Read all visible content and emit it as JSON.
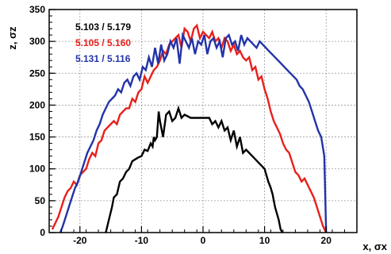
{
  "chart_data": {
    "type": "line",
    "title": "",
    "xlabel": "x, σx",
    "ylabel": "z, σz",
    "xlim": [
      -25,
      25
    ],
    "ylim": [
      0,
      350
    ],
    "xticks": [
      -20,
      -10,
      0,
      10,
      20
    ],
    "yticks": [
      0,
      50,
      100,
      150,
      200,
      250,
      300,
      350
    ],
    "xtick_labels": [
      "-20",
      "-10",
      "0",
      "10",
      "20"
    ],
    "ytick_labels": [
      "0",
      "50",
      "100",
      "150",
      "200",
      "250",
      "300",
      "350"
    ],
    "grid": true,
    "legend_position": "top-left",
    "series": [
      {
        "name": "5.103 / 5.179",
        "color": "#000000",
        "x": [
          -15.8,
          -15.3,
          -14.8,
          -14.5,
          -14.0,
          -13.5,
          -13.0,
          -12.5,
          -12.0,
          -11.5,
          -11.0,
          -10.5,
          -10.0,
          -9.5,
          -9.0,
          -8.5,
          -8.2,
          -8.0,
          -7.8,
          -7.5,
          -7.2,
          -7.0,
          -6.5,
          -6.0,
          -5.5,
          -5.0,
          -4.5,
          -4.0,
          -3.5,
          -3.0,
          -2.0,
          -1.0,
          0.0,
          1.0,
          1.5,
          2.0,
          2.5,
          3.0,
          3.5,
          4.0,
          4.5,
          5.0,
          5.5,
          6.0,
          6.5,
          7.0,
          7.5,
          8.0,
          8.5,
          9.0,
          9.5,
          10.0,
          10.3,
          10.6,
          11.0,
          11.3,
          11.7,
          12.0,
          12.3,
          12.6,
          12.9
        ],
        "y": [
          0,
          20,
          40,
          55,
          60,
          80,
          85,
          95,
          100,
          112,
          115,
          118,
          120,
          130,
          128,
          140,
          135,
          150,
          145,
          150,
          190,
          175,
          150,
          185,
          190,
          175,
          180,
          195,
          180,
          185,
          180,
          180,
          180,
          180,
          170,
          175,
          165,
          175,
          160,
          165,
          145,
          160,
          135,
          150,
          125,
          130,
          125,
          120,
          115,
          110,
          105,
          100,
          90,
          80,
          70,
          60,
          40,
          30,
          20,
          5,
          0
        ]
      },
      {
        "name": "5.105 / 5.160",
        "color": "#e8201a",
        "x": [
          -24.5,
          -24.0,
          -23.5,
          -23.0,
          -22.5,
          -22.0,
          -21.5,
          -21.0,
          -20.5,
          -20.0,
          -19.5,
          -19.0,
          -18.5,
          -18.0,
          -17.5,
          -17.0,
          -16.5,
          -16.0,
          -15.5,
          -15.0,
          -14.5,
          -14.0,
          -13.5,
          -13.0,
          -12.5,
          -12.0,
          -11.5,
          -11.0,
          -10.5,
          -10.0,
          -9.5,
          -9.0,
          -8.5,
          -8.0,
          -7.5,
          -7.0,
          -6.5,
          -6.0,
          -5.5,
          -5.0,
          -4.5,
          -4.0,
          -3.5,
          -3.0,
          -2.5,
          -2.0,
          -1.5,
          -1.0,
          -0.5,
          0.0,
          0.5,
          1.0,
          1.5,
          2.0,
          2.5,
          3.0,
          3.5,
          4.0,
          4.5,
          5.0,
          5.5,
          6.0,
          6.5,
          7.0,
          7.5,
          8.0,
          8.5,
          9.0,
          9.5,
          10.0,
          10.5,
          11.0,
          11.5,
          12.0,
          12.5,
          13.0,
          13.5,
          14.0,
          14.5,
          15.0,
          15.5,
          16.0,
          16.5,
          17.0,
          17.5,
          18.0,
          18.5,
          19.0,
          19.5,
          20.0
        ],
        "y": [
          5,
          15,
          25,
          40,
          55,
          65,
          70,
          80,
          75,
          90,
          95,
          100,
          115,
          125,
          120,
          140,
          145,
          160,
          165,
          170,
          175,
          170,
          185,
          190,
          195,
          195,
          210,
          205,
          220,
          225,
          245,
          235,
          245,
          255,
          260,
          270,
          285,
          280,
          295,
          300,
          305,
          310,
          290,
          320,
          315,
          300,
          320,
          325,
          305,
          315,
          310,
          305,
          315,
          300,
          305,
          290,
          305,
          300,
          285,
          295,
          280,
          285,
          275,
          270,
          275,
          255,
          260,
          240,
          245,
          225,
          210,
          190,
          175,
          165,
          155,
          140,
          130,
          125,
          110,
          95,
          90,
          80,
          85,
          75,
          65,
          55,
          40,
          25,
          10,
          0
        ]
      },
      {
        "name": "5.131 / 5.116",
        "color": "#2233a8",
        "x": [
          -23.2,
          -22.8,
          -22.3,
          -21.8,
          -21.3,
          -20.8,
          -20.3,
          -19.8,
          -19.3,
          -18.8,
          -18.3,
          -17.8,
          -17.3,
          -16.8,
          -16.3,
          -15.8,
          -15.3,
          -14.8,
          -14.3,
          -13.8,
          -13.3,
          -12.8,
          -12.3,
          -11.8,
          -11.3,
          -10.8,
          -10.3,
          -9.8,
          -9.3,
          -8.8,
          -8.3,
          -7.8,
          -7.3,
          -6.8,
          -6.3,
          -5.8,
          -5.3,
          -4.8,
          -4.3,
          -3.8,
          -3.3,
          -2.8,
          -2.3,
          -1.8,
          -1.3,
          -0.8,
          -0.3,
          0.2,
          0.7,
          1.2,
          1.7,
          2.2,
          2.7,
          3.2,
          3.7,
          4.2,
          4.7,
          5.2,
          5.7,
          6.2,
          6.7,
          7.2,
          7.7,
          8.2,
          8.7,
          9.2,
          9.7,
          10.2,
          10.7,
          11.2,
          11.7,
          12.2,
          12.7,
          13.2,
          13.7,
          14.2,
          14.7,
          15.2,
          15.7,
          16.2,
          16.7,
          17.2,
          17.7,
          18.2,
          18.7,
          19.2,
          19.7,
          20.0
        ],
        "y": [
          0,
          10,
          25,
          40,
          55,
          70,
          80,
          95,
          110,
          125,
          135,
          145,
          160,
          170,
          185,
          195,
          205,
          210,
          215,
          225,
          220,
          235,
          240,
          230,
          245,
          250,
          240,
          260,
          255,
          275,
          260,
          290,
          265,
          295,
          270,
          280,
          300,
          290,
          305,
          265,
          310,
          300,
          290,
          305,
          280,
          300,
          295,
          310,
          280,
          300,
          305,
          290,
          300,
          275,
          305,
          310,
          295,
          300,
          285,
          310,
          295,
          305,
          300,
          295,
          290,
          300,
          295,
          290,
          285,
          280,
          275,
          270,
          265,
          260,
          255,
          250,
          245,
          240,
          230,
          225,
          215,
          205,
          190,
          175,
          160,
          150,
          120,
          0
        ]
      }
    ]
  }
}
